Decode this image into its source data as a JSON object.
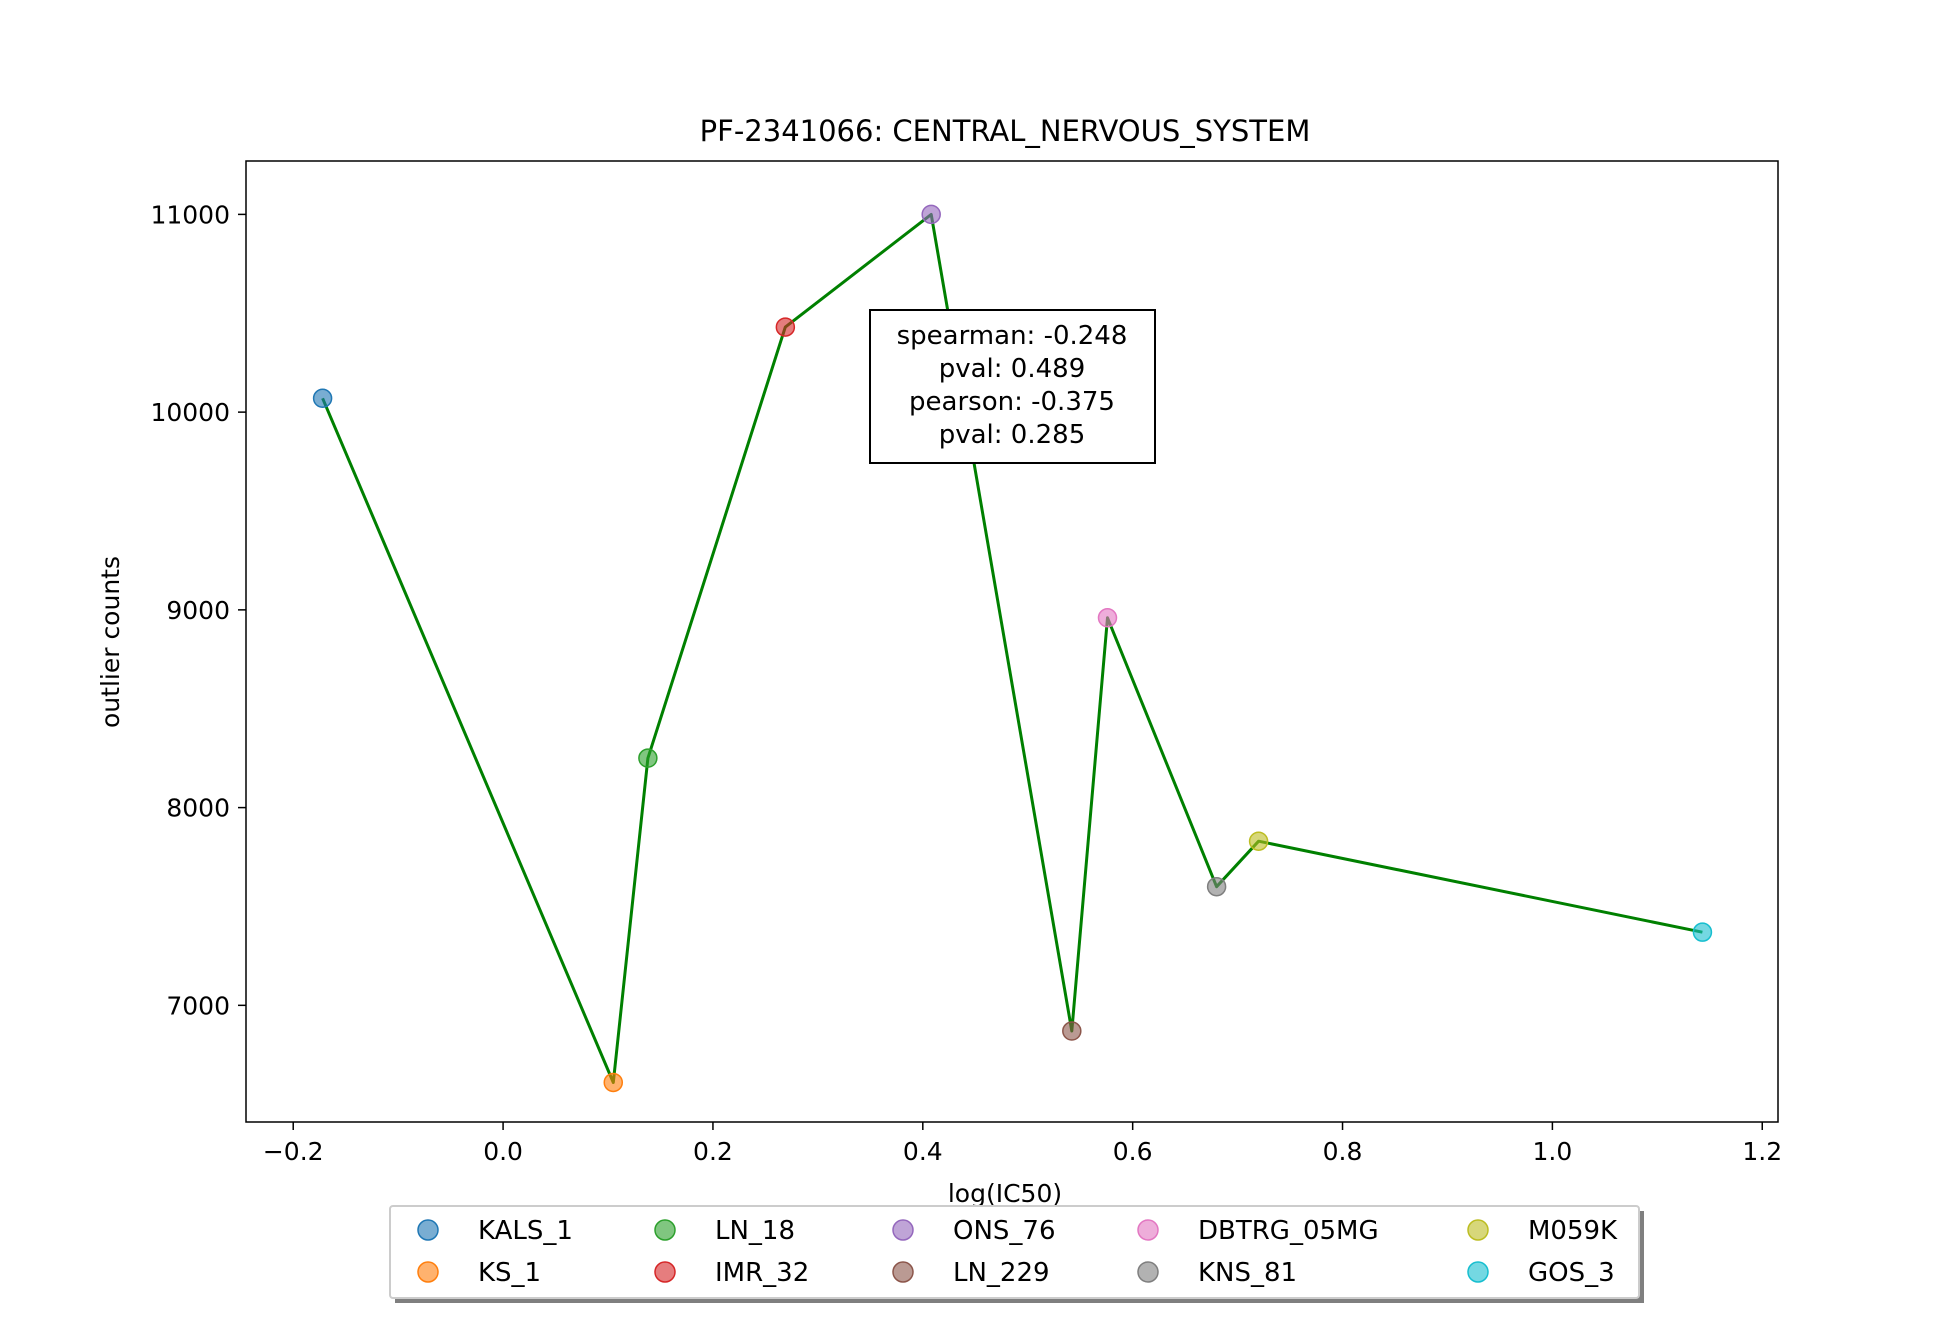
{
  "chart_data": {
    "type": "scatter",
    "title": "PF-2341066: CENTRAL_NERVOUS_SYSTEM",
    "xlabel": "log(IC50)",
    "ylabel": "outlier counts",
    "xlim": [
      -0.245,
      1.215
    ],
    "ylim": [
      6410,
      11270
    ],
    "x_ticks": [
      -0.2,
      0.0,
      0.2,
      0.4,
      0.6,
      0.8,
      1.0,
      1.2
    ],
    "x_tick_labels": [
      "−0.2",
      "0.0",
      "0.2",
      "0.4",
      "0.6",
      "0.8",
      "1.0",
      "1.2"
    ],
    "y_ticks": [
      7000,
      8000,
      9000,
      10000,
      11000
    ],
    "y_tick_labels": [
      "7000",
      "8000",
      "9000",
      "10000",
      "11000"
    ],
    "grid": false,
    "legend_placement": "bottom-center",
    "line_color": "#008000",
    "series": [
      {
        "name": "KALS_1",
        "x": -0.172,
        "y": 10070,
        "color": "#1f77b4"
      },
      {
        "name": "KS_1",
        "x": 0.105,
        "y": 6610,
        "color": "#ff7f0e"
      },
      {
        "name": "LN_18",
        "x": 0.138,
        "y": 8250,
        "color": "#2ca02c"
      },
      {
        "name": "IMR_32",
        "x": 0.269,
        "y": 10430,
        "color": "#d62728"
      },
      {
        "name": "ONS_76",
        "x": 0.408,
        "y": 11000,
        "color": "#9467bd"
      },
      {
        "name": "LN_229",
        "x": 0.542,
        "y": 6870,
        "color": "#8c564b"
      },
      {
        "name": "DBTRG_05MG",
        "x": 0.576,
        "y": 8960,
        "color": "#e377c2"
      },
      {
        "name": "KNS_81",
        "x": 0.68,
        "y": 7600,
        "color": "#7f7f7f"
      },
      {
        "name": "M059K",
        "x": 0.72,
        "y": 7830,
        "color": "#bcbd22"
      },
      {
        "name": "GOS_3",
        "x": 1.143,
        "y": 7370,
        "color": "#17becf"
      }
    ],
    "annotation": {
      "lines": [
        "spearman: -0.248",
        "pval: 0.489",
        "pearson: -0.375",
        "pval: 0.285"
      ]
    }
  }
}
